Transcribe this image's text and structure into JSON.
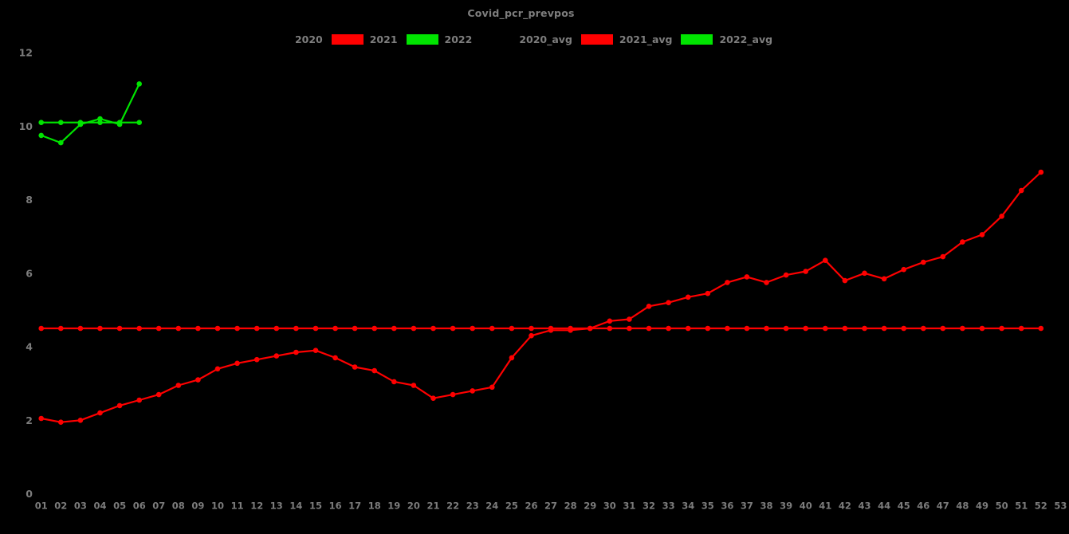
{
  "title": "Covid_pcr_prevpos",
  "colors": {
    "background": "#000000",
    "label_text": "#7c7c7c",
    "red": "#ff0000",
    "green": "#00e400"
  },
  "legend": {
    "items": [
      {
        "label": "2020",
        "swatch_color": "#000000"
      },
      {
        "label": "2021",
        "swatch_color": "#ff0000"
      },
      {
        "label": "2022",
        "swatch_color": "#00e400"
      },
      {
        "label": "2020_avg",
        "swatch_color": "#000000"
      },
      {
        "label": "2021_avg",
        "swatch_color": "#ff0000"
      },
      {
        "label": "2022_avg",
        "swatch_color": "#00e400"
      }
    ]
  },
  "chart_data": {
    "type": "line",
    "title": "Covid_pcr_prevpos",
    "xlabel": "",
    "ylabel": "",
    "x_unit": "week-of-year",
    "xlim": [
      1,
      53
    ],
    "ylim": [
      0,
      12
    ],
    "grid": false,
    "axes_visible": false,
    "legend_position": "top-center",
    "y_ticks": [
      0,
      2,
      4,
      6,
      8,
      10,
      12
    ],
    "x_tick_labels": [
      "01",
      "02",
      "03",
      "04",
      "05",
      "06",
      "07",
      "08",
      "09",
      "10",
      "11",
      "12",
      "13",
      "14",
      "15",
      "16",
      "17",
      "18",
      "19",
      "20",
      "21",
      "22",
      "23",
      "24",
      "25",
      "26",
      "27",
      "28",
      "29",
      "30",
      "31",
      "32",
      "33",
      "34",
      "35",
      "36",
      "37",
      "38",
      "39",
      "40",
      "41",
      "42",
      "43",
      "44",
      "45",
      "46",
      "47",
      "48",
      "49",
      "50",
      "51",
      "52",
      "53"
    ],
    "series": [
      {
        "name": "2021",
        "color": "#ff0000",
        "marker": "circle",
        "x_start": 1,
        "values": [
          2.05,
          1.95,
          2.0,
          2.2,
          2.4,
          2.55,
          2.7,
          2.95,
          3.1,
          3.4,
          3.55,
          3.65,
          3.75,
          3.85,
          3.9,
          3.7,
          3.45,
          3.35,
          3.05,
          2.95,
          2.6,
          2.7,
          2.8,
          2.9,
          3.7,
          4.3,
          4.45,
          4.45,
          4.5,
          4.7,
          4.75,
          5.1,
          5.2,
          5.35,
          5.45,
          5.75,
          5.9,
          5.75,
          5.95,
          6.05,
          6.35,
          5.8,
          6.0,
          5.85,
          6.1,
          6.3,
          6.45,
          6.85,
          7.05,
          7.55,
          8.25,
          8.75
        ]
      },
      {
        "name": "2022",
        "color": "#00e400",
        "marker": "circle",
        "x_start": 1,
        "values": [
          9.75,
          9.55,
          10.05,
          10.2,
          10.05,
          11.15
        ]
      },
      {
        "name": "2021_avg",
        "color": "#ff0000",
        "marker": "circle",
        "x_start": 1,
        "x_end": 52,
        "constant": 4.5
      },
      {
        "name": "2022_avg",
        "color": "#00e400",
        "marker": "circle",
        "x_start": 1,
        "x_end": 6,
        "constant": 10.1
      }
    ]
  }
}
